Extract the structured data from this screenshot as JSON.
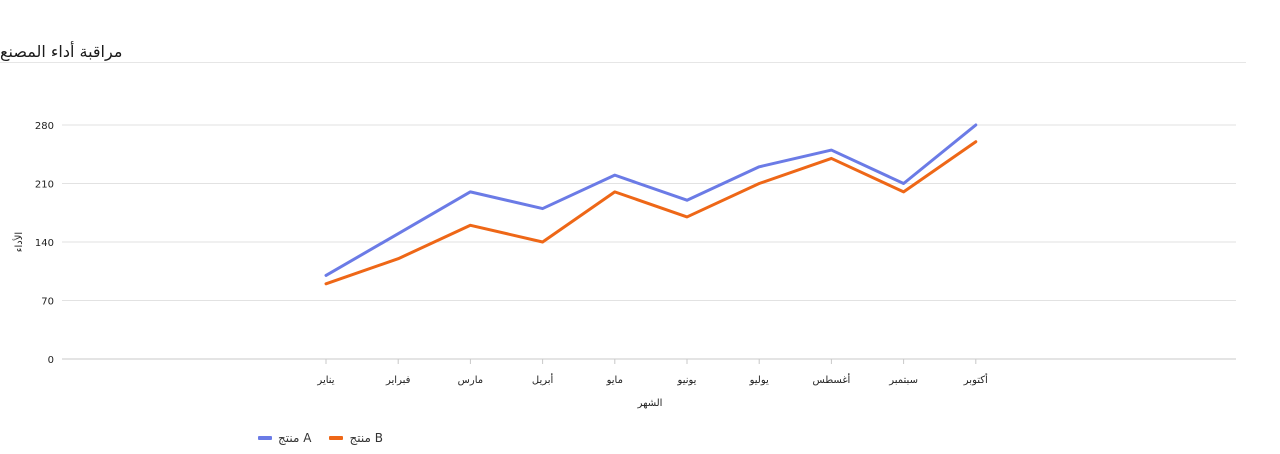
{
  "title": "مراقبة أداء المصنع",
  "chart_data": {
    "type": "line",
    "categories": [
      "يناير",
      "فبراير",
      "مارس",
      "أبريل",
      "مايو",
      "يونيو",
      "يوليو",
      "أغسطس",
      "سبتمبر",
      "أكتوبر"
    ],
    "series": [
      {
        "name": "منتج A",
        "color": "#6b7be6",
        "values": [
          100,
          150,
          200,
          180,
          220,
          190,
          230,
          250,
          210,
          280
        ]
      },
      {
        "name": "منتج B",
        "color": "#ee6717",
        "values": [
          90,
          120,
          160,
          140,
          200,
          170,
          210,
          240,
          200,
          260
        ]
      }
    ],
    "xlabel": "الشهر",
    "ylabel": "الأداء",
    "ylim": [
      0,
      280
    ],
    "yticks": [
      0,
      70,
      140,
      210,
      280
    ],
    "grid": true,
    "legend_position": "bottom-left"
  }
}
